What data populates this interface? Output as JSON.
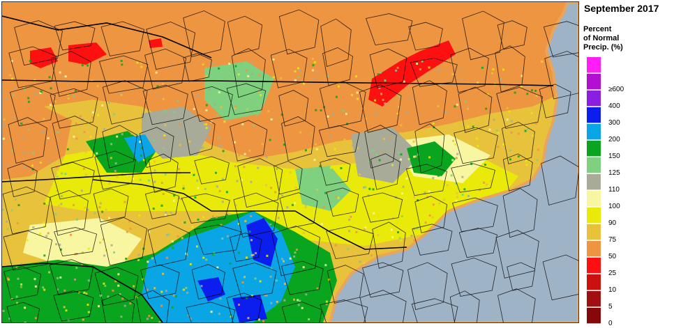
{
  "legend": {
    "title": "September 2017",
    "subtitle_lines": [
      "Percent",
      "of Normal",
      "Precip. (%)"
    ],
    "bins": [
      {
        "label": "",
        "color": "#ff1ef5"
      },
      {
        "label": "≥600",
        "color": "#b20fd0"
      },
      {
        "label": "400",
        "color": "#8a1fe0"
      },
      {
        "label": "300",
        "color": "#0b1eee"
      },
      {
        "label": "200",
        "color": "#0aa5e5"
      },
      {
        "label": "150",
        "color": "#0aa51f"
      },
      {
        "label": "125",
        "color": "#7fd07f"
      },
      {
        "label": "110",
        "color": "#a8ab98"
      },
      {
        "label": "100",
        "color": "#f8f6a0"
      },
      {
        "label": "90",
        "color": "#eaea0a"
      },
      {
        "label": "75",
        "color": "#e9c23b"
      },
      {
        "label": "50",
        "color": "#ee9541"
      },
      {
        "label": "25",
        "color": "#ff1010"
      },
      {
        "label": "10",
        "color": "#cc1010"
      },
      {
        "label": "5",
        "color": "#a01010"
      },
      {
        "label": "0",
        "color": "#860808"
      }
    ]
  },
  "map": {
    "ocean_color": "#9fb3c7",
    "border_color": "#000000"
  }
}
